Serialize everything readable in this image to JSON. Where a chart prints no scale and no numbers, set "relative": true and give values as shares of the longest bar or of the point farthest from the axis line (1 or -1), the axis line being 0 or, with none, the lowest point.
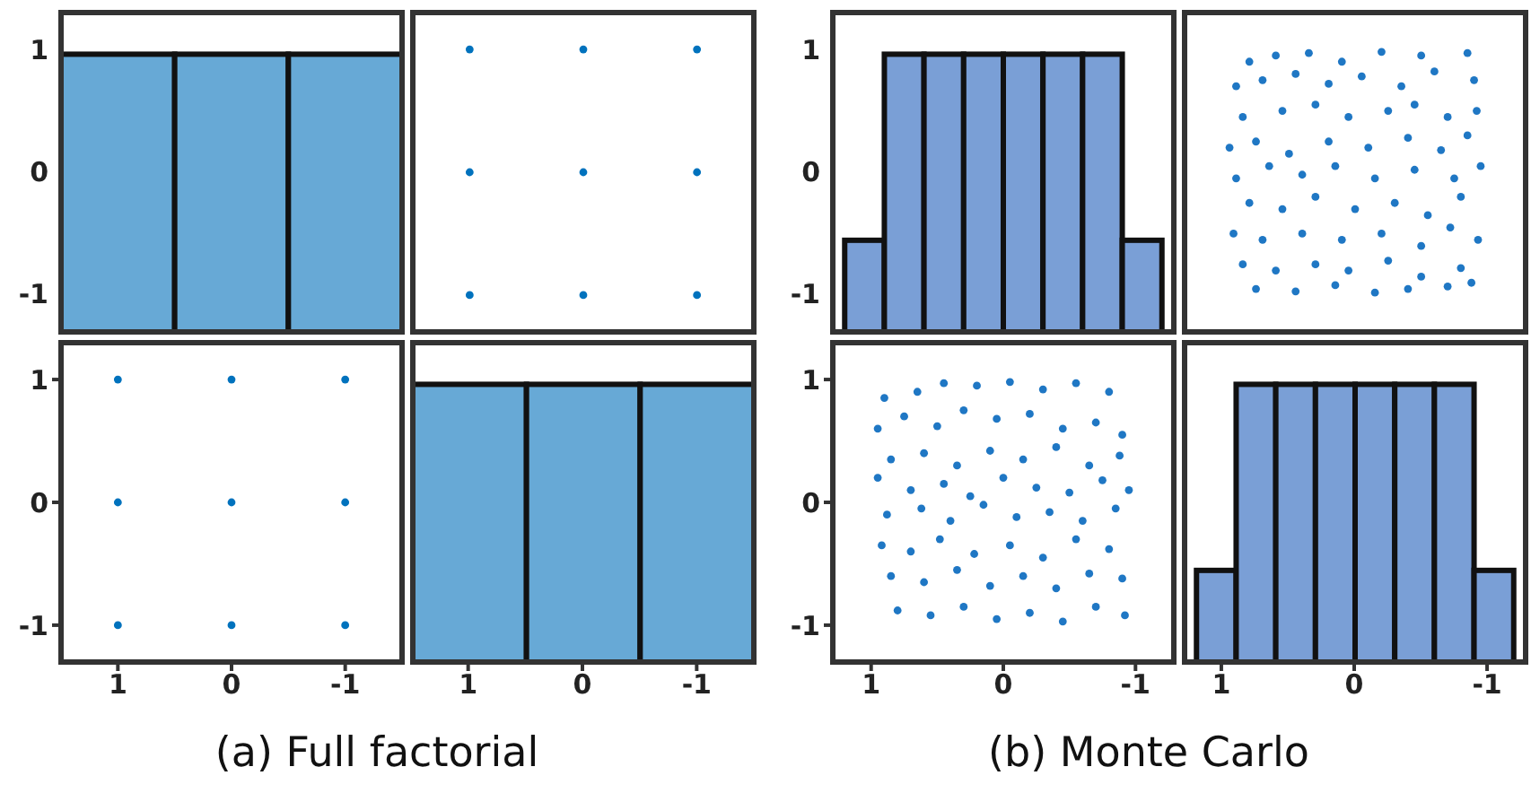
{
  "chart_data": [
    {
      "type": "bar",
      "relative": true,
      "x": [
        1,
        0,
        -1
      ],
      "values": [
        1,
        1,
        1
      ],
      "color": "#67a9d6",
      "xlim": [
        1.5,
        -1.5
      ],
      "xticks": [
        1,
        0,
        -1
      ],
      "y2lim": [
        -1.3,
        1.3
      ],
      "y2ticks": [
        -1,
        0,
        1
      ],
      "tick_labels": "y"
    },
    {
      "type": "scatter",
      "x": [
        1,
        0,
        -1,
        1,
        0,
        -1,
        1,
        0,
        -1
      ],
      "values": [
        1,
        1,
        1,
        0,
        0,
        0,
        -1,
        -1,
        -1
      ],
      "color": "#0072bd",
      "xlim": [
        1.5,
        -1.5
      ],
      "xticks": [
        1,
        0,
        -1
      ],
      "ylim": [
        -1.3,
        1.3
      ],
      "yticks": [
        -1,
        0,
        1
      ],
      "tick_labels": false
    },
    {
      "type": "scatter",
      "x": [
        1,
        0,
        -1,
        1,
        0,
        -1,
        1,
        0,
        -1
      ],
      "values": [
        1,
        1,
        1,
        0,
        0,
        0,
        -1,
        -1,
        -1
      ],
      "color": "#0072bd",
      "xlim": [
        1.5,
        -1.5
      ],
      "xticks": [
        1,
        0,
        -1
      ],
      "ylim": [
        -1.3,
        1.3
      ],
      "yticks": [
        -1,
        0,
        1
      ],
      "annotations": [
        "(a) Full factorial"
      ]
    },
    {
      "type": "bar",
      "relative": true,
      "x": [
        1,
        0,
        -1
      ],
      "values": [
        1,
        1,
        1
      ],
      "color": "#67a9d6",
      "xlim": [
        1.5,
        -1.5
      ],
      "xticks": [
        1,
        0,
        -1
      ],
      "tick_labels": "x"
    },
    {
      "type": "bar",
      "relative": true,
      "x": [
        1.05,
        0.75,
        0.45,
        0.15,
        -0.15,
        -0.45,
        -0.75,
        -1.05
      ],
      "values": [
        0.33,
        1,
        1,
        1,
        1,
        1,
        1,
        0.33
      ],
      "color": "#7a9fd6",
      "xlim": [
        1.29,
        -1.29
      ],
      "xticks": [
        1,
        0,
        -1
      ],
      "y2lim": [
        -1.3,
        1.3
      ],
      "y2ticks": [
        -1,
        0,
        1
      ],
      "tick_labels": "y"
    },
    {
      "type": "scatter",
      "x": [
        0.8,
        0.6,
        0.35,
        0.1,
        -0.2,
        -0.5,
        -0.85,
        0.9,
        0.7,
        0.45,
        0.2,
        -0.05,
        -0.35,
        -0.6,
        -0.9,
        0.85,
        0.55,
        0.3,
        0.05,
        -0.25,
        -0.45,
        -0.7,
        -0.92,
        0.95,
        0.75,
        0.5,
        0.2,
        -0.1,
        -0.4,
        -0.65,
        -0.85,
        0.9,
        0.65,
        0.4,
        0.15,
        -0.15,
        -0.45,
        -0.75,
        -0.95,
        0.8,
        0.55,
        0.3,
        0.0,
        -0.3,
        -0.55,
        -0.8,
        0.92,
        0.7,
        0.4,
        0.1,
        -0.2,
        -0.5,
        -0.72,
        -0.93,
        0.85,
        0.6,
        0.3,
        0.05,
        -0.25,
        -0.5,
        -0.8,
        0.75,
        0.45,
        0.15,
        -0.15,
        -0.4,
        -0.7,
        -0.88
      ],
      "values": [
        0.9,
        0.95,
        0.97,
        0.9,
        0.98,
        0.95,
        0.97,
        0.7,
        0.75,
        0.8,
        0.72,
        0.78,
        0.7,
        0.82,
        0.75,
        0.45,
        0.5,
        0.55,
        0.45,
        0.5,
        0.55,
        0.45,
        0.5,
        0.2,
        0.25,
        0.15,
        0.25,
        0.2,
        0.28,
        0.18,
        0.3,
        -0.05,
        0.05,
        -0.02,
        0.05,
        -0.05,
        0.02,
        -0.05,
        0.05,
        -0.25,
        -0.3,
        -0.2,
        -0.3,
        -0.25,
        -0.35,
        -0.2,
        -0.5,
        -0.55,
        -0.5,
        -0.55,
        -0.5,
        -0.6,
        -0.45,
        -0.55,
        -0.75,
        -0.8,
        -0.75,
        -0.8,
        -0.72,
        -0.85,
        -0.78,
        -0.95,
        -0.97,
        -0.92,
        -0.98,
        -0.95,
        -0.93,
        -0.9
      ],
      "color": "#1f77c4",
      "xlim": [
        1.29,
        -1.29
      ],
      "xticks": [
        1,
        0,
        -1
      ],
      "ylim": [
        -1.3,
        1.3
      ],
      "yticks": [
        -1,
        0,
        1
      ],
      "tick_labels": false
    },
    {
      "type": "scatter",
      "x": [
        0.9,
        0.65,
        0.45,
        0.2,
        -0.05,
        -0.3,
        -0.55,
        -0.8,
        0.95,
        0.75,
        0.5,
        0.3,
        0.05,
        -0.2,
        -0.45,
        -0.7,
        -0.9,
        0.85,
        0.6,
        0.35,
        0.1,
        -0.15,
        -0.4,
        -0.65,
        -0.88,
        0.95,
        0.7,
        0.45,
        0.25,
        0.0,
        -0.25,
        -0.5,
        -0.75,
        -0.95,
        0.88,
        0.62,
        0.4,
        0.15,
        -0.1,
        -0.35,
        -0.6,
        -0.85,
        0.92,
        0.7,
        0.48,
        0.22,
        -0.05,
        -0.3,
        -0.55,
        -0.8,
        0.85,
        0.6,
        0.35,
        0.1,
        -0.15,
        -0.4,
        -0.65,
        -0.9,
        0.8,
        0.55,
        0.3,
        0.05,
        -0.2,
        -0.45,
        -0.7,
        -0.92
      ],
      "values": [
        0.85,
        0.9,
        0.97,
        0.95,
        0.98,
        0.92,
        0.97,
        0.9,
        0.6,
        0.7,
        0.62,
        0.75,
        0.68,
        0.72,
        0.6,
        0.65,
        0.55,
        0.35,
        0.4,
        0.3,
        0.42,
        0.35,
        0.45,
        0.3,
        0.38,
        0.2,
        0.1,
        0.15,
        0.05,
        0.2,
        0.12,
        0.08,
        0.18,
        0.1,
        -0.1,
        -0.05,
        -0.15,
        -0.02,
        -0.12,
        -0.08,
        -0.15,
        -0.05,
        -0.35,
        -0.4,
        -0.3,
        -0.42,
        -0.35,
        -0.45,
        -0.3,
        -0.38,
        -0.6,
        -0.65,
        -0.55,
        -0.68,
        -0.6,
        -0.7,
        -0.58,
        -0.62,
        -0.88,
        -0.92,
        -0.85,
        -0.95,
        -0.9,
        -0.97,
        -0.85,
        -0.92
      ],
      "color": "#1f77c4",
      "xlim": [
        1.29,
        -1.29
      ],
      "xticks": [
        1,
        0,
        -1
      ],
      "ylim": [
        -1.3,
        1.3
      ],
      "yticks": [
        -1,
        0,
        1
      ],
      "annotations": [
        "(b) Monte Carlo"
      ]
    },
    {
      "type": "bar",
      "relative": true,
      "x": [
        1.05,
        0.75,
        0.45,
        0.15,
        -0.15,
        -0.45,
        -0.75,
        -1.05
      ],
      "values": [
        0.33,
        1,
        1,
        1,
        1,
        1,
        1,
        0.33
      ],
      "color": "#7a9fd6",
      "xlim": [
        1.29,
        -1.29
      ],
      "xticks": [
        1,
        0,
        -1
      ],
      "tick_labels": "x"
    }
  ]
}
